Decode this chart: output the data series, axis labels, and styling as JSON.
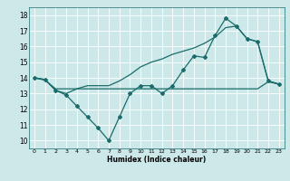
{
  "xlabel": "Humidex (Indice chaleur)",
  "xlim": [
    -0.5,
    23.5
  ],
  "ylim": [
    9.5,
    18.5
  ],
  "yticks": [
    10,
    11,
    12,
    13,
    14,
    15,
    16,
    17,
    18
  ],
  "xticks": [
    0,
    1,
    2,
    3,
    4,
    5,
    6,
    7,
    8,
    9,
    10,
    11,
    12,
    13,
    14,
    15,
    16,
    17,
    18,
    19,
    20,
    21,
    22,
    23
  ],
  "bg_color": "#cce8e8",
  "line_color": "#1a6b6b",
  "grid_color": "#ffffff",
  "series1_x": [
    0,
    1,
    2,
    3,
    4,
    5,
    6,
    7,
    8,
    9,
    10,
    11,
    12,
    13,
    14,
    15,
    16,
    17,
    18,
    19,
    20,
    21,
    22,
    23
  ],
  "series1_y": [
    14.0,
    13.9,
    13.2,
    12.9,
    12.2,
    11.5,
    10.8,
    10.0,
    11.5,
    13.0,
    13.5,
    13.5,
    13.0,
    13.5,
    14.5,
    15.4,
    15.3,
    16.7,
    17.8,
    17.3,
    16.5,
    16.3,
    13.8,
    13.6
  ],
  "series2_x": [
    0,
    1,
    2,
    3,
    4,
    5,
    6,
    7,
    8,
    9,
    10,
    11,
    12,
    13,
    14,
    15,
    16,
    17,
    18,
    19,
    20,
    21,
    22,
    23
  ],
  "series2_y": [
    14.0,
    13.85,
    13.3,
    13.3,
    13.3,
    13.3,
    13.3,
    13.3,
    13.3,
    13.3,
    13.3,
    13.3,
    13.3,
    13.3,
    13.3,
    13.3,
    13.3,
    13.3,
    13.3,
    13.3,
    13.3,
    13.3,
    13.75,
    13.6
  ],
  "series3_x": [
    0,
    1,
    2,
    3,
    4,
    5,
    6,
    7,
    8,
    9,
    10,
    11,
    12,
    13,
    14,
    15,
    16,
    17,
    18,
    19,
    20,
    21,
    22,
    23
  ],
  "series3_y": [
    14.0,
    13.9,
    13.2,
    13.0,
    13.3,
    13.5,
    13.5,
    13.5,
    13.8,
    14.2,
    14.7,
    15.0,
    15.2,
    15.5,
    15.7,
    15.9,
    16.2,
    16.6,
    17.2,
    17.3,
    16.5,
    16.3,
    13.8,
    13.6
  ]
}
